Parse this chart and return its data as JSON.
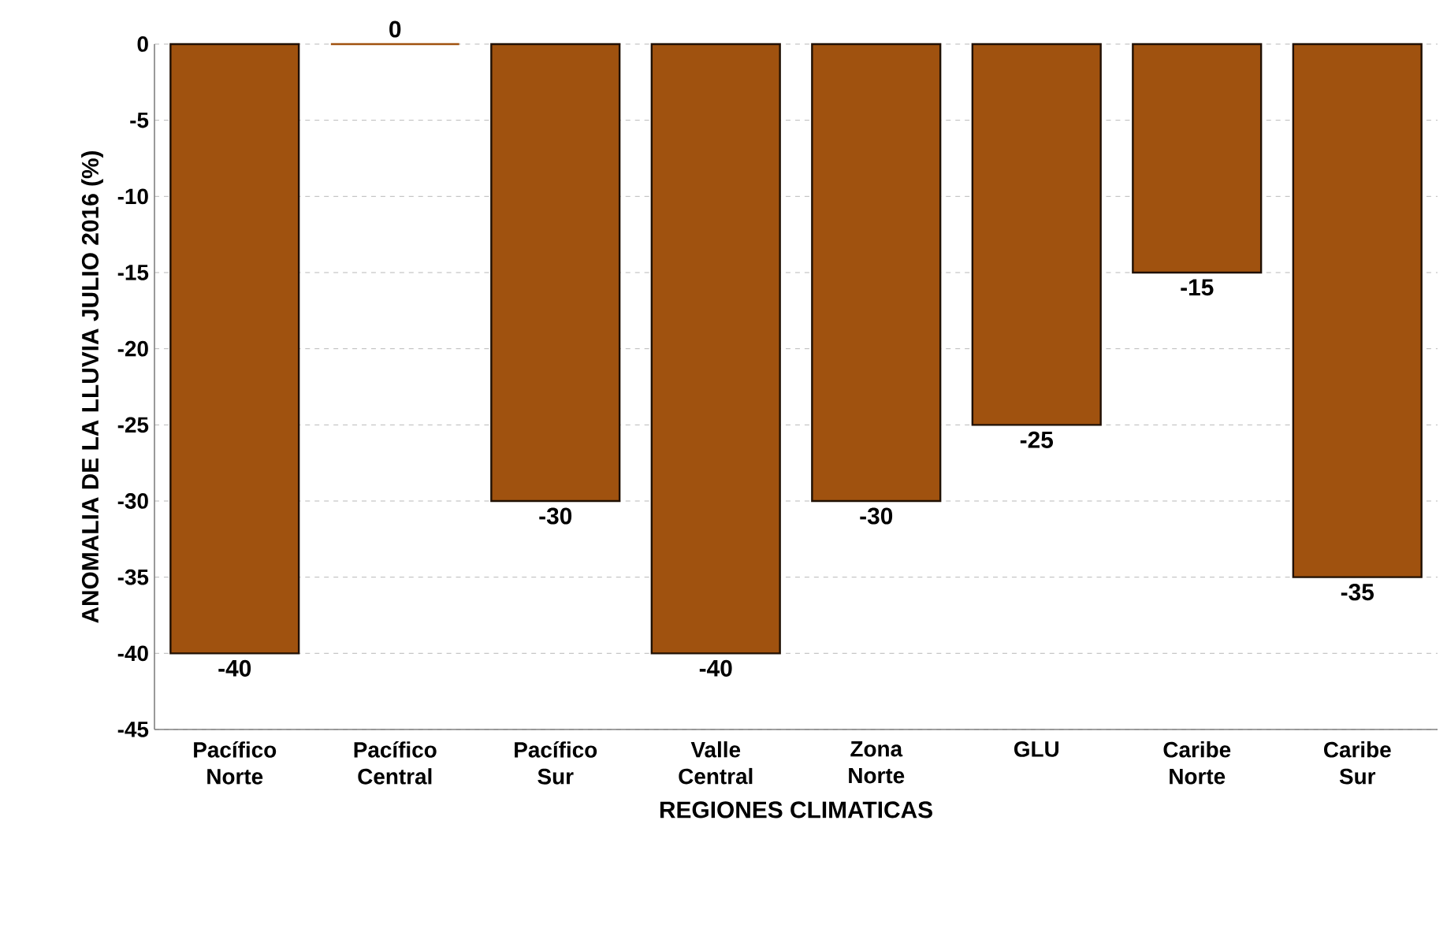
{
  "chart_data": {
    "type": "bar",
    "xlabel": "REGIONES CLIMATICAS",
    "ylabel": "ANOMALIA DE LA LLUVIA JULIO 2016 (%)",
    "categories": [
      "Pacífico Norte",
      "Pacífico Central",
      "Pacífico Sur",
      "Valle Central",
      "Zona Norte",
      "GLU",
      "Caribe Norte",
      "Caribe Sur"
    ],
    "values": [
      -40,
      0,
      -30,
      -40,
      -30,
      -25,
      -15,
      -35
    ],
    "color": "#a0520f",
    "ylim": [
      -45,
      0
    ],
    "yticks": [
      -45,
      -40,
      -35,
      -30,
      -25,
      -20,
      -15,
      -10,
      -5,
      0
    ],
    "grid": "y",
    "data_labels": true
  }
}
